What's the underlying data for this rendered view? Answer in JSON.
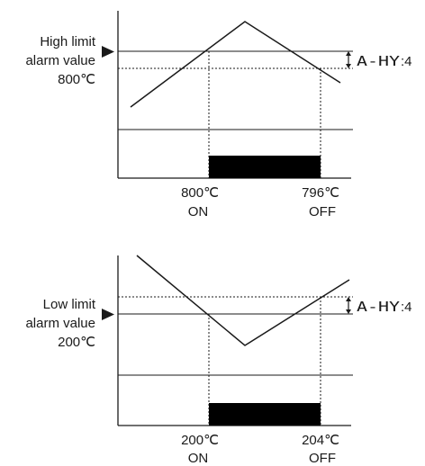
{
  "high_limit": {
    "label_line1": "High limit",
    "label_line2": "alarm value",
    "label_line3": "800℃",
    "hysteresis_code": "A-HY",
    "hysteresis_value": ":4",
    "on_temp": "800℃",
    "on_text": "ON",
    "off_temp": "796℃",
    "off_text": "OFF"
  },
  "low_limit": {
    "label_line1": "Low limit",
    "label_line2": "alarm value",
    "label_line3": "200℃",
    "hysteresis_code": "A-HY",
    "hysteresis_value": ":4",
    "on_temp": "200℃",
    "on_text": "ON",
    "off_temp": "204℃",
    "off_text": "OFF"
  },
  "colors": {
    "line": "#1a1a1a",
    "output_bar": "#000000"
  }
}
